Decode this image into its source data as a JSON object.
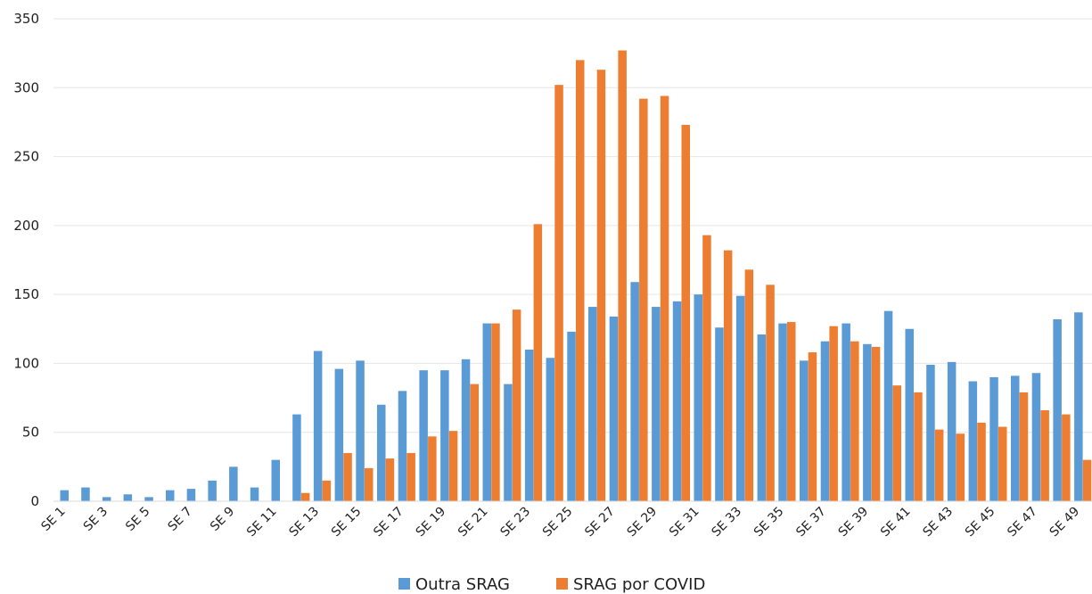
{
  "chart_data": {
    "type": "bar",
    "title": "",
    "xlabel": "",
    "ylabel": "",
    "ylim": [
      0,
      350
    ],
    "yticks": [
      0,
      50,
      100,
      150,
      200,
      250,
      300,
      350
    ],
    "grid": true,
    "legend_position": "bottom",
    "categories": [
      "SE 1",
      "SE 2",
      "SE 3",
      "SE 4",
      "SE 5",
      "SE 6",
      "SE 7",
      "SE 8",
      "SE 9",
      "SE 10",
      "SE 11",
      "SE 12",
      "SE 13",
      "SE 14",
      "SE 15",
      "SE 16",
      "SE 17",
      "SE 18",
      "SE 19",
      "SE 20",
      "SE 21",
      "SE 22",
      "SE 23",
      "SE 24",
      "SE 25",
      "SE 26",
      "SE 27",
      "SE 28",
      "SE 29",
      "SE 30",
      "SE 31",
      "SE 32",
      "SE 33",
      "SE 34",
      "SE 35",
      "SE 36",
      "SE 37",
      "SE 38",
      "SE 39",
      "SE 40",
      "SE 41",
      "SE 42",
      "SE 43",
      "SE 44",
      "SE 45",
      "SE 46",
      "SE 47",
      "SE 48",
      "SE 49"
    ],
    "visible_tick_labels": [
      "SE 1",
      "SE 3",
      "SE 5",
      "SE 7",
      "SE 9",
      "SE 11",
      "SE 13",
      "SE 15",
      "SE 17",
      "SE 19",
      "SE 21",
      "SE 23",
      "SE 25",
      "SE 27",
      "SE 29",
      "SE 31",
      "SE 33",
      "SE 35",
      "SE 37",
      "SE 39",
      "SE 41",
      "SE 43",
      "SE 45",
      "SE 47",
      "SE 49"
    ],
    "series": [
      {
        "name": "Outra SRAG",
        "color": "#5B9BD5",
        "values": [
          8,
          10,
          3,
          5,
          3,
          8,
          9,
          15,
          25,
          10,
          30,
          63,
          109,
          96,
          102,
          70,
          80,
          95,
          95,
          103,
          129,
          85,
          110,
          104,
          123,
          141,
          134,
          159,
          141,
          145,
          150,
          126,
          149,
          121,
          129,
          102,
          116,
          129,
          114,
          138,
          125,
          99,
          101,
          87,
          90,
          91,
          93,
          132,
          137
        ]
      },
      {
        "name": "SRAG por COVID",
        "color": "#ED7D31",
        "values": [
          0,
          0,
          0,
          0,
          0,
          0,
          0,
          0,
          0,
          0,
          0,
          6,
          15,
          35,
          24,
          31,
          35,
          47,
          51,
          85,
          129,
          139,
          201,
          302,
          320,
          313,
          327,
          292,
          294,
          273,
          193,
          182,
          168,
          157,
          130,
          108,
          127,
          116,
          112,
          84,
          79,
          52,
          49,
          57,
          54,
          79,
          66,
          63,
          30
        ]
      }
    ]
  }
}
